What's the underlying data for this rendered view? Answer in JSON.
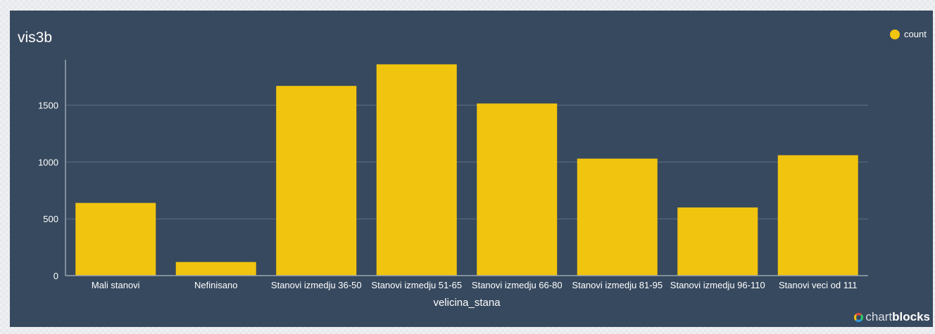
{
  "chart_data": {
    "type": "bar",
    "title": "vis3b",
    "xlabel": "velicina_stana",
    "ylabel": "",
    "categories": [
      "Mali stanovi",
      "Nefinisano",
      "Stanovi izmedju 36-50",
      "Stanovi izmedju 51-65",
      "Stanovi izmedju 66-80",
      "Stanovi izmedju 81-95",
      "Stanovi izmedju 96-110",
      "Stanovi veci od 111"
    ],
    "series": [
      {
        "name": "count",
        "values": [
          640,
          120,
          1670,
          1860,
          1515,
          1030,
          600,
          1060
        ]
      }
    ],
    "ylim": [
      0,
      1900
    ],
    "yticks": [
      0,
      500,
      1000,
      1500
    ],
    "grid": true,
    "legend_position": "top-right",
    "colors": {
      "bar": "#f1c40f",
      "background": "#37495e",
      "grid": "#5f7080",
      "axis": "#9aa5b1"
    }
  },
  "branding": {
    "light": "chart",
    "bold": "blocks",
    "icon": "chartblocks-logo-icon"
  }
}
